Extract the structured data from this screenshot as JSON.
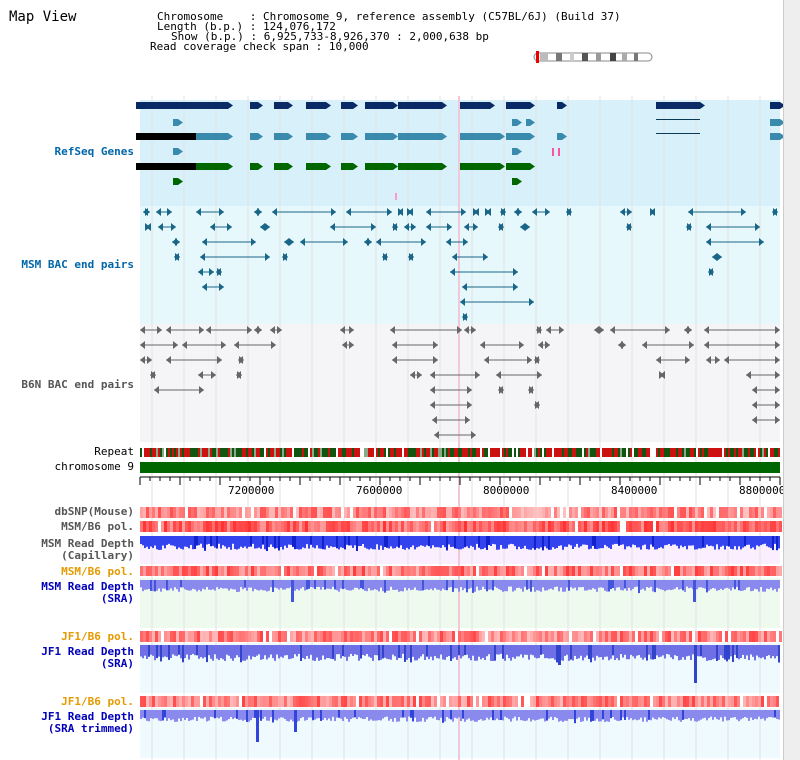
{
  "view_title": "Map View",
  "info": {
    "chromosome_key": "Chromosome",
    "chromosome_val": "Chromosome 9, reference assembly (C57BL/6J) (Build 37)",
    "length_key": "Length (b.p.)",
    "length_val": "124,076,172",
    "show_key": "Show (b.p.)",
    "show_val": "6,925,733-8,926,370 : 2,000,638 bp",
    "coverage_key": "Read coverage check span",
    "coverage_val": "10,000"
  },
  "tracks": {
    "refseq": "RefSeq Genes",
    "msm_bac": "MSM BAC end pairs",
    "b6n_bac": "B6N BAC end pairs",
    "repeat": "Repeat",
    "chrom": "chromosome 9",
    "dbsnp": "dbSNP(Mouse)",
    "msm_b6_pol": "MSM/B6 pol.",
    "msm_rd_cap_1": "MSM Read Depth",
    "msm_rd_cap_2": "(Capillary)",
    "msm_b6_pol2": "MSM/B6 pol.",
    "msm_rd_sra_1": "MSM Read Depth",
    "msm_rd_sra_2": "(SRA)",
    "jf1_pol": "JF1/B6 pol.",
    "jf1_rd_1": "JF1 Read Depth",
    "jf1_rd_2": "(SRA)",
    "jf1_pol2": "JF1/B6 pol.",
    "jf1_rdt_1": "JF1 Read Depth",
    "jf1_rdt_2": "(SRA trimmed)"
  },
  "axis": {
    "ticks": [
      "7200000",
      "7600000",
      "8000000",
      "8400000",
      "8800000"
    ]
  },
  "colors": {
    "refseq_bg": "#d8f0fa",
    "msm_bg": "#e6f8fb",
    "b6n_bg": "#f5f5f8",
    "gene_navy": "#0a2a66",
    "gene_teal": "#3a8aae",
    "gene_green": "#006600",
    "bac_teal": "#1a6688",
    "bac_gray": "#666666",
    "chrom_green": "#006600",
    "pol_red": "#ee3333",
    "depth_blue": "#2233ee",
    "depth_light": "#8888ee"
  }
}
